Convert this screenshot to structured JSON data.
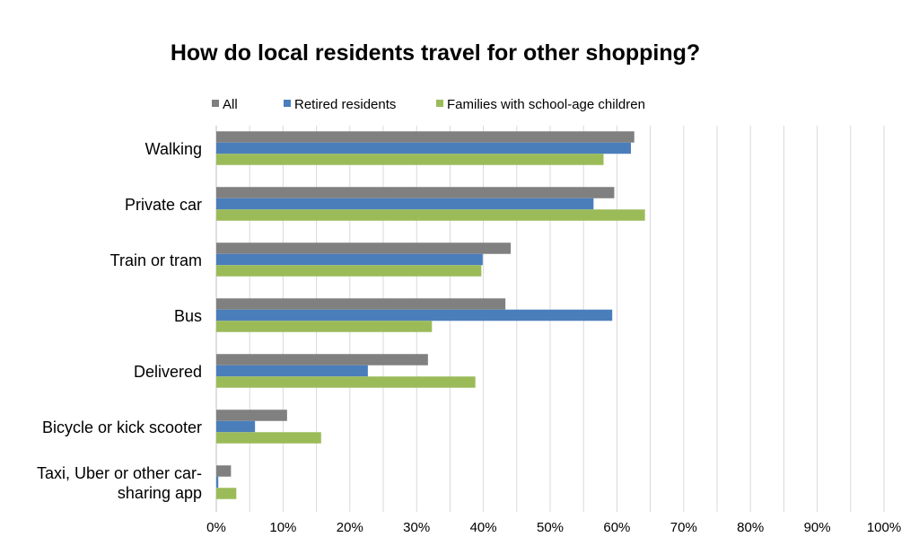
{
  "chart_data": {
    "type": "bar",
    "orientation": "horizontal",
    "title": "How do local residents travel for other shopping?",
    "categories": [
      "Walking",
      "Private car",
      "Train or tram",
      "Bus",
      "Delivered",
      "Bicycle or kick scooter",
      "Taxi, Uber or other car-sharing app"
    ],
    "category_lines": [
      [
        "Walking"
      ],
      [
        "Private car"
      ],
      [
        "Train or tram"
      ],
      [
        "Bus"
      ],
      [
        "Delivered"
      ],
      [
        "Bicycle or kick scooter"
      ],
      [
        "Taxi, Uber or other car-",
        "sharing app"
      ]
    ],
    "series": [
      {
        "name": "All",
        "color": "#808080",
        "values": [
          62.6,
          59.6,
          44.1,
          43.3,
          31.7,
          10.6,
          2.2
        ]
      },
      {
        "name": "Retired residents",
        "color": "#4a7ebb",
        "values": [
          62.1,
          56.5,
          39.9,
          59.3,
          22.7,
          5.8,
          0.3
        ]
      },
      {
        "name": "Families with school-age children",
        "color": "#9bbb59",
        "values": [
          58.0,
          64.2,
          39.7,
          32.3,
          38.8,
          15.7,
          3.0
        ]
      }
    ],
    "xlim": [
      0,
      100
    ],
    "xticks": [
      "0%",
      "10%",
      "20%",
      "30%",
      "40%",
      "50%",
      "60%",
      "70%",
      "80%",
      "90%",
      "100%"
    ],
    "grid": true,
    "legend": "top"
  }
}
